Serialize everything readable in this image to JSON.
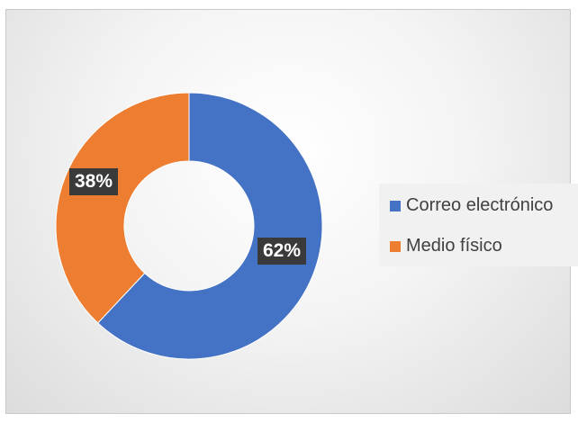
{
  "chart_data": {
    "type": "pie",
    "subtype": "donut",
    "categories": [
      "Correo electrónico",
      "Medio físico"
    ],
    "values": [
      62,
      38
    ],
    "labels": [
      "62%",
      "38%"
    ],
    "colors": [
      "#4472C4",
      "#ED7D31"
    ],
    "legend": "right"
  }
}
